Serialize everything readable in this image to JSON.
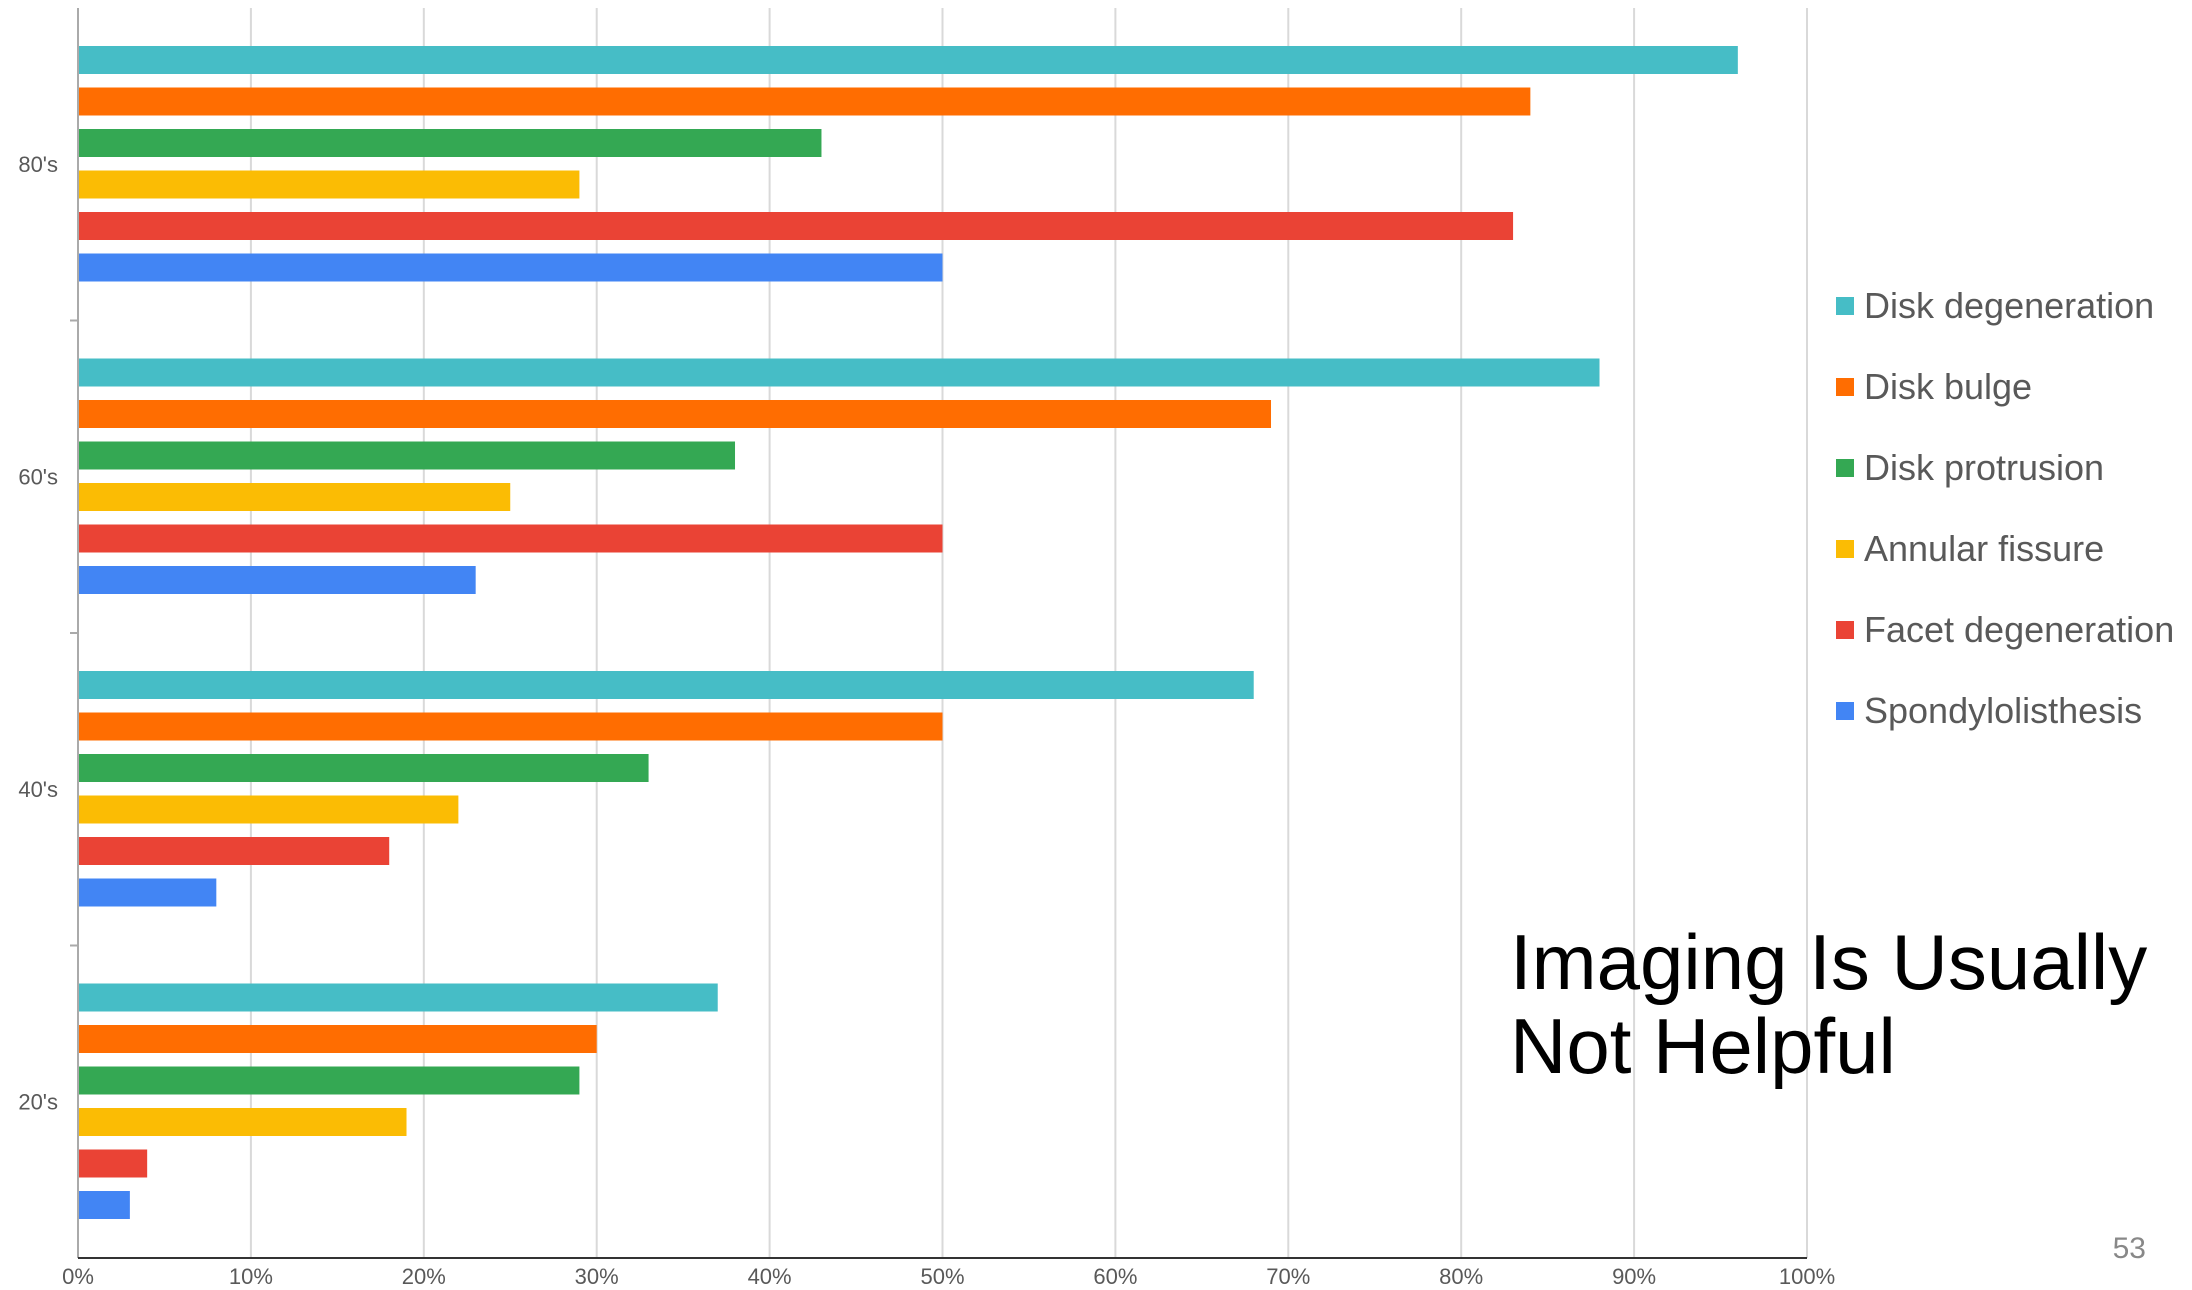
{
  "slide": {
    "title_line1": "Imaging Is Usually",
    "title_line2": "Not Helpful",
    "page_number": "53"
  },
  "chart_data": {
    "type": "bar",
    "orientation": "horizontal",
    "categories": [
      "80's",
      "60's",
      "40's",
      "20's"
    ],
    "series": [
      {
        "name": "Disk degeneration",
        "color": "#46BDC6",
        "values": [
          96,
          88,
          68,
          37
        ]
      },
      {
        "name": "Disk bulge",
        "color": "#FF6D01",
        "values": [
          84,
          69,
          50,
          30
        ]
      },
      {
        "name": "Disk protrusion",
        "color": "#34A853",
        "values": [
          43,
          38,
          33,
          29
        ]
      },
      {
        "name": "Annular fissure",
        "color": "#FBBC04",
        "values": [
          29,
          25,
          22,
          19
        ]
      },
      {
        "name": "Facet degeneration",
        "color": "#EA4335",
        "values": [
          83,
          50,
          18,
          4
        ]
      },
      {
        "name": "Spondylolisthesis",
        "color": "#4285F4",
        "values": [
          50,
          23,
          8,
          3
        ]
      }
    ],
    "xlim": [
      0,
      100
    ],
    "xticks": [
      "0%",
      "10%",
      "20%",
      "30%",
      "40%",
      "50%",
      "60%",
      "70%",
      "80%",
      "90%",
      "100%"
    ],
    "grid": true,
    "legend": "right"
  }
}
